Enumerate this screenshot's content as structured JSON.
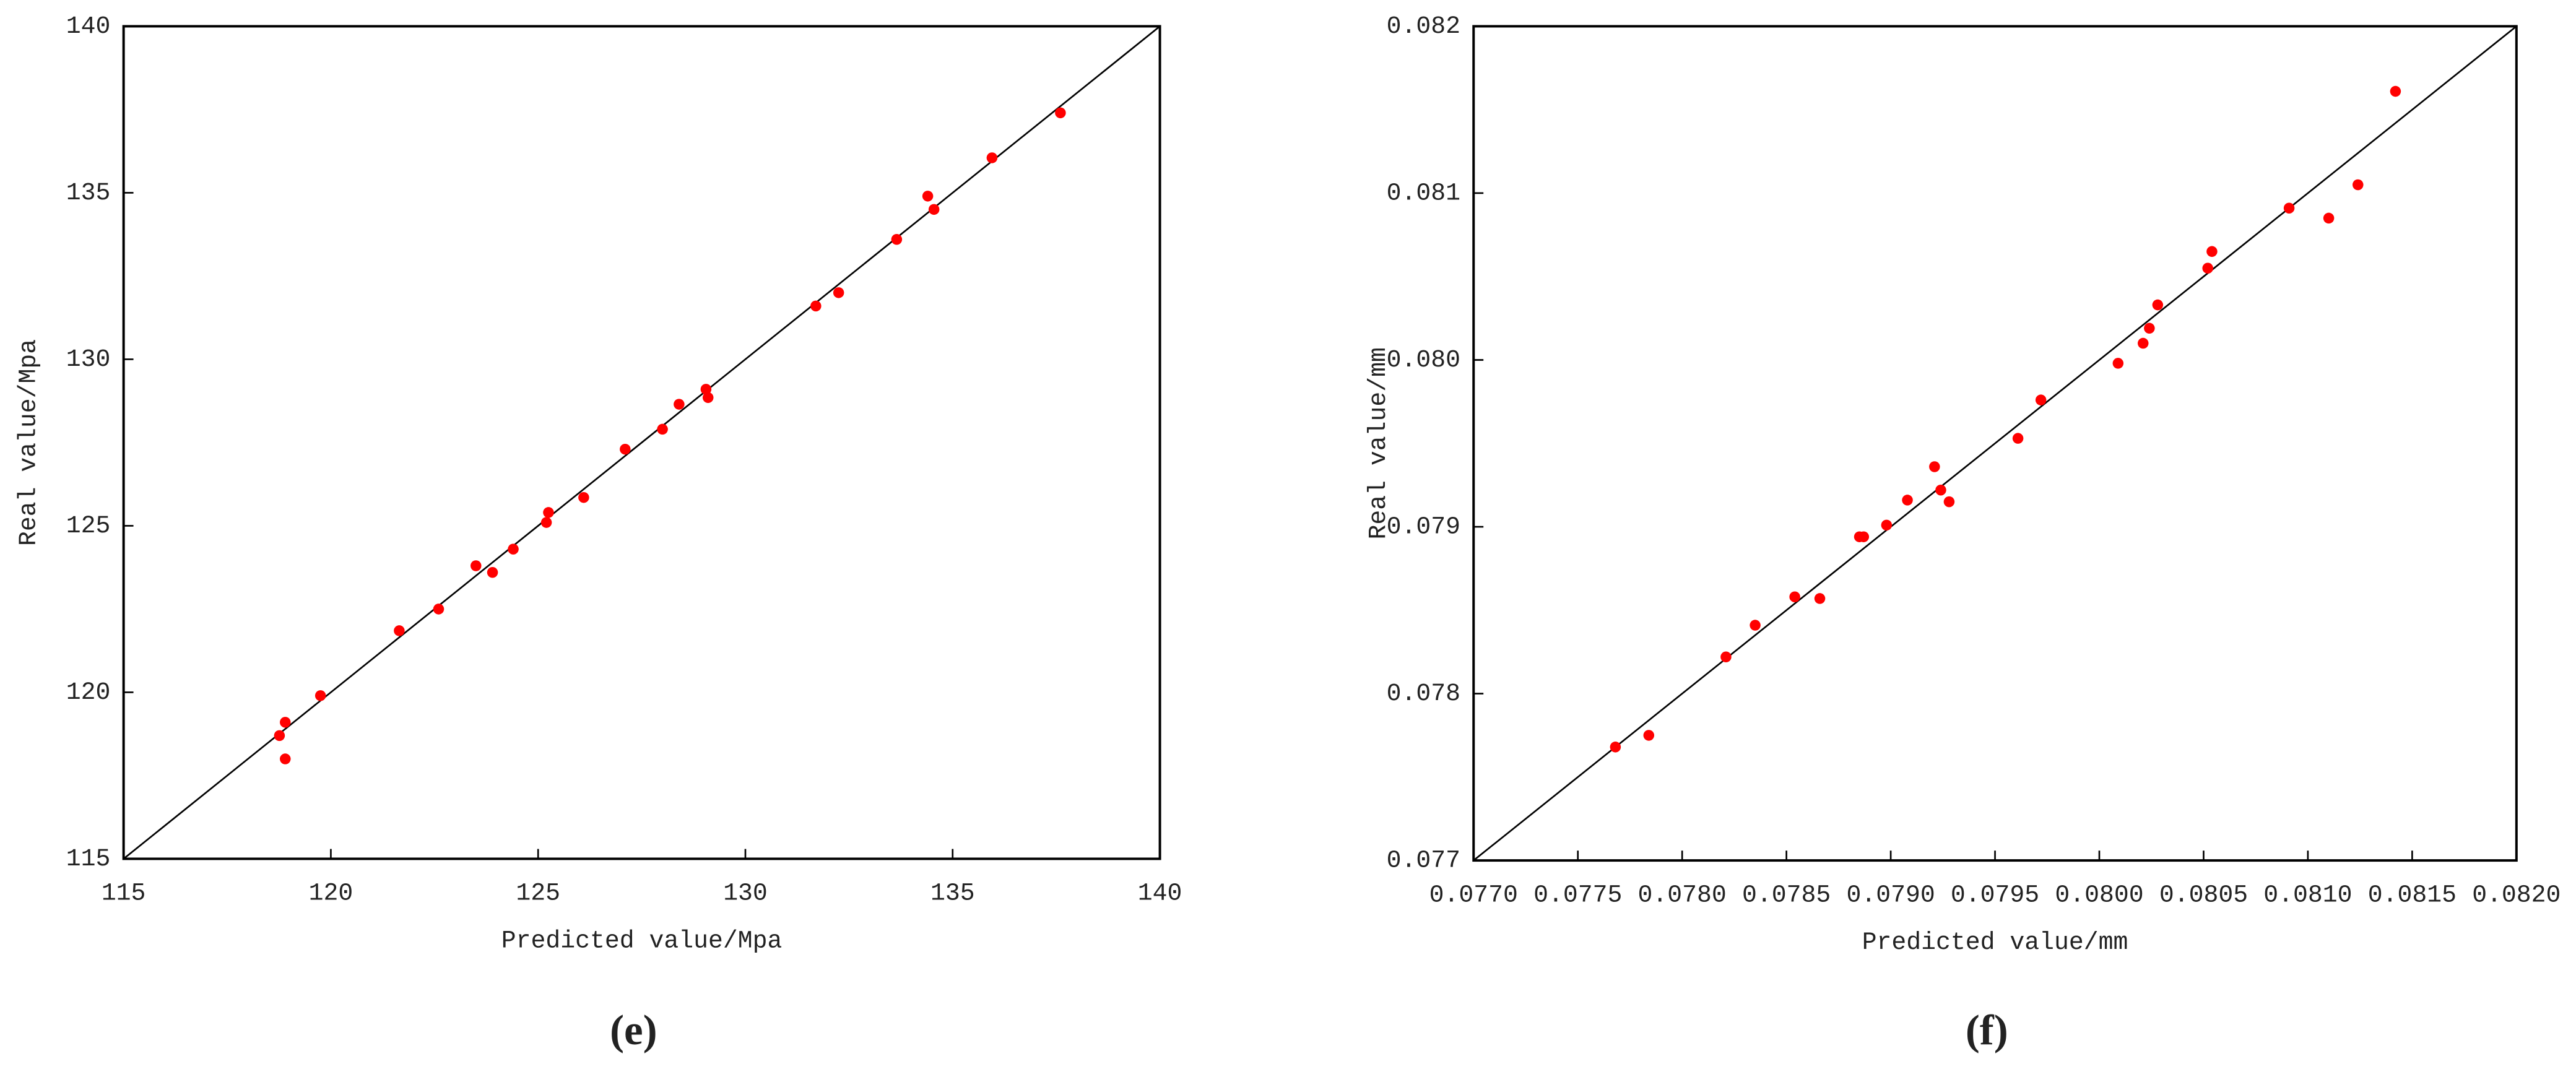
{
  "chart_data": [
    {
      "type": "scatter",
      "title": "(e)",
      "xlabel": "Predicted value/Mpa",
      "ylabel": "Real value/Mpa",
      "x": [
        118.76,
        118.9,
        118.9,
        119.75,
        121.65,
        122.6,
        123.5,
        123.9,
        124.4,
        125.2,
        125.25,
        126.1,
        127.1,
        128.0,
        128.4,
        129.05,
        129.1,
        131.7,
        132.25,
        133.65,
        134.4,
        134.55,
        135.95,
        137.6
      ],
      "series": [
        {
          "color": "#ff0000",
          "values": [
            118.7,
            119.1,
            118.0,
            119.9,
            121.85,
            122.5,
            123.8,
            123.6,
            124.3,
            125.1,
            125.4,
            125.85,
            127.3,
            127.9,
            128.65,
            129.1,
            128.85,
            131.6,
            132.0,
            133.6,
            134.9,
            134.5,
            136.05,
            137.4
          ]
        }
      ],
      "xlim": [
        115,
        140
      ],
      "ylim": [
        115,
        140
      ],
      "xticks": [
        115,
        120,
        125,
        130,
        135,
        140
      ],
      "yticks": [
        115,
        120,
        125,
        130,
        135,
        140
      ],
      "identity_line": true
    },
    {
      "type": "scatter",
      "title": "(f)",
      "xlabel": "Predicted value/mm",
      "ylabel": "Real value/mm",
      "x": [
        0.07768,
        0.07784,
        0.07821,
        0.07835,
        0.07854,
        0.07866,
        0.07885,
        0.07887,
        0.07898,
        0.07908,
        0.07921,
        0.07924,
        0.07928,
        0.07961,
        0.07972,
        0.08009,
        0.08021,
        0.08024,
        0.08028,
        0.08052,
        0.08054,
        0.08091,
        0.0811,
        0.08124,
        0.08142
      ],
      "series": [
        {
          "color": "#ff0000",
          "values": [
            0.07768,
            0.07775,
            0.07822,
            0.07841,
            0.07858,
            0.07857,
            0.07894,
            0.07894,
            0.07901,
            0.07916,
            0.07936,
            0.07922,
            0.07915,
            0.07953,
            0.07976,
            0.07998,
            0.0801,
            0.08019,
            0.08033,
            0.08055,
            0.08065,
            0.08091,
            0.08085,
            0.08105,
            0.08161
          ]
        }
      ],
      "xlim": [
        0.077,
        0.082
      ],
      "ylim": [
        0.077,
        0.082
      ],
      "xticks": [
        {
          "value": 0.077,
          "label": "0.0770"
        },
        0.0775,
        {
          "value": 0.078,
          "label": "0.0780"
        },
        0.0785,
        {
          "value": 0.079,
          "label": "0.0790"
        },
        0.0795,
        {
          "value": 0.08,
          "label": "0.0800"
        },
        0.0805,
        {
          "value": 0.081,
          "label": "0.0810"
        },
        0.0815,
        {
          "value": 0.082,
          "label": "0.0820"
        }
      ],
      "yticks": [
        0.077,
        0.078,
        0.079,
        {
          "value": 0.08,
          "label": "0.080"
        },
        0.081,
        0.082
      ],
      "identity_line": true
    }
  ]
}
